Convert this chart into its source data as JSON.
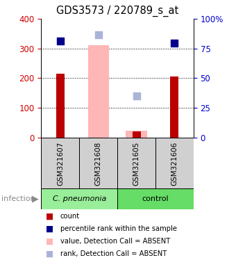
{
  "title": "GDS3573 / 220789_s_at",
  "samples": [
    "GSM321607",
    "GSM321608",
    "GSM321605",
    "GSM321606"
  ],
  "count_values": [
    215,
    null,
    20,
    205
  ],
  "count_color": "#bb0000",
  "absent_value_values": [
    null,
    310,
    22,
    null
  ],
  "absent_value_color": "#ffb6b6",
  "percentile_values": [
    325,
    null,
    null,
    318
  ],
  "percentile_color": "#00008b",
  "absent_rank_values": [
    null,
    345,
    140,
    null
  ],
  "absent_rank_color": "#aab4d8",
  "ylim": [
    0,
    400
  ],
  "y2lim": [
    0,
    100
  ],
  "yticks": [
    0,
    100,
    200,
    300,
    400
  ],
  "y2ticks": [
    0,
    25,
    50,
    75,
    100
  ],
  "y2labels": [
    "0",
    "25",
    "50",
    "75",
    "100%"
  ],
  "left_tick_color": "#cc0000",
  "right_tick_color": "#0000cc",
  "group_names": [
    "C. pneumonia",
    "control"
  ],
  "group_bg_colors": [
    "#99ee99",
    "#66dd66"
  ],
  "legend_items": [
    {
      "label": "count",
      "color": "#bb0000"
    },
    {
      "label": "percentile rank within the sample",
      "color": "#00008b"
    },
    {
      "label": "value, Detection Call = ABSENT",
      "color": "#ffb6b6"
    },
    {
      "label": "rank, Detection Call = ABSENT",
      "color": "#aab4d8"
    }
  ]
}
